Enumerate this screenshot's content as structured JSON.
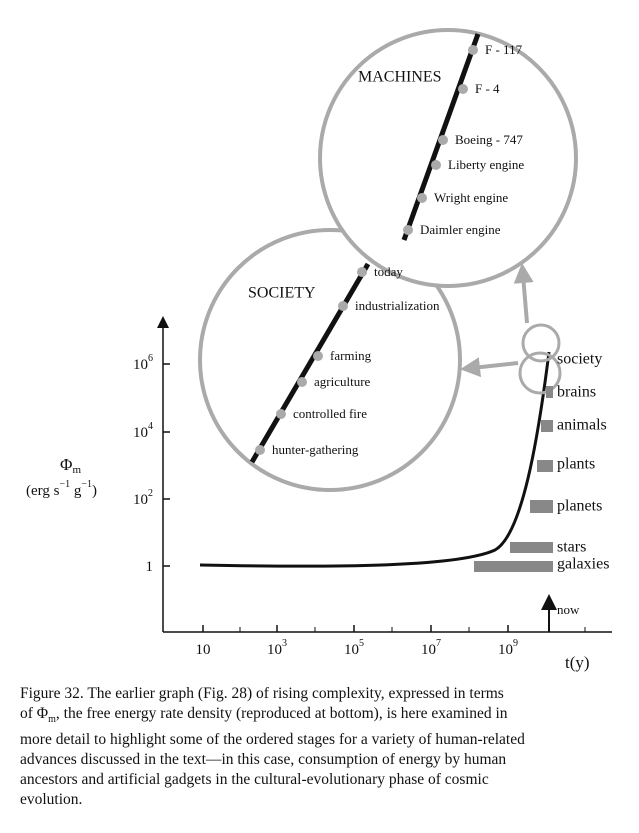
{
  "figure": {
    "y_axis": {
      "symbol": "Φ",
      "symbol_sub": "m",
      "unit_open": "(erg s",
      "unit_exp1": "−1",
      "unit_mid": " g",
      "unit_exp2": "−1",
      "unit_close": ")"
    },
    "x_axis": {
      "label": "t(y)",
      "now": "now"
    },
    "yticks": [
      {
        "base": "1"
      },
      {
        "base": "10",
        "exp": "2"
      },
      {
        "base": "10",
        "exp": "4"
      },
      {
        "base": "10",
        "exp": "6"
      }
    ],
    "xticks": [
      {
        "base": "10"
      },
      {
        "base": "10",
        "exp": "3"
      },
      {
        "base": "10",
        "exp": "5"
      },
      {
        "base": "10",
        "exp": "7"
      },
      {
        "base": "10",
        "exp": "9"
      }
    ],
    "stages": [
      "galaxies",
      "stars",
      "planets",
      "plants",
      "animals",
      "brains",
      "society"
    ],
    "society": {
      "title": "SOCIETY",
      "points": [
        "hunter-gathering",
        "controlled fire",
        "agriculture",
        "farming",
        "industrialization",
        "today"
      ]
    },
    "machines": {
      "title": "MACHINES",
      "points": [
        "Daimler engine",
        "Wright engine",
        "Liberty engine",
        "Boeing - 747",
        "F - 4",
        "F - 117"
      ]
    }
  },
  "caption": {
    "lines": [
      "Figure 32. The earlier graph (Fig. 28) of rising complexity, expressed in terms",
      {
        "pre": "of ",
        "symbol": "Φ",
        "sub": "m",
        "post": ", the free energy rate density (reproduced at bottom), is here examined in"
      },
      "more detail to highlight some of the ordered stages for a variety of human-related",
      "advances discussed in the text—in this case, consumption of energy by human",
      "ancestors and artificial gadgets in the cultural-evolutionary phase of cosmic",
      "evolution."
    ]
  }
}
